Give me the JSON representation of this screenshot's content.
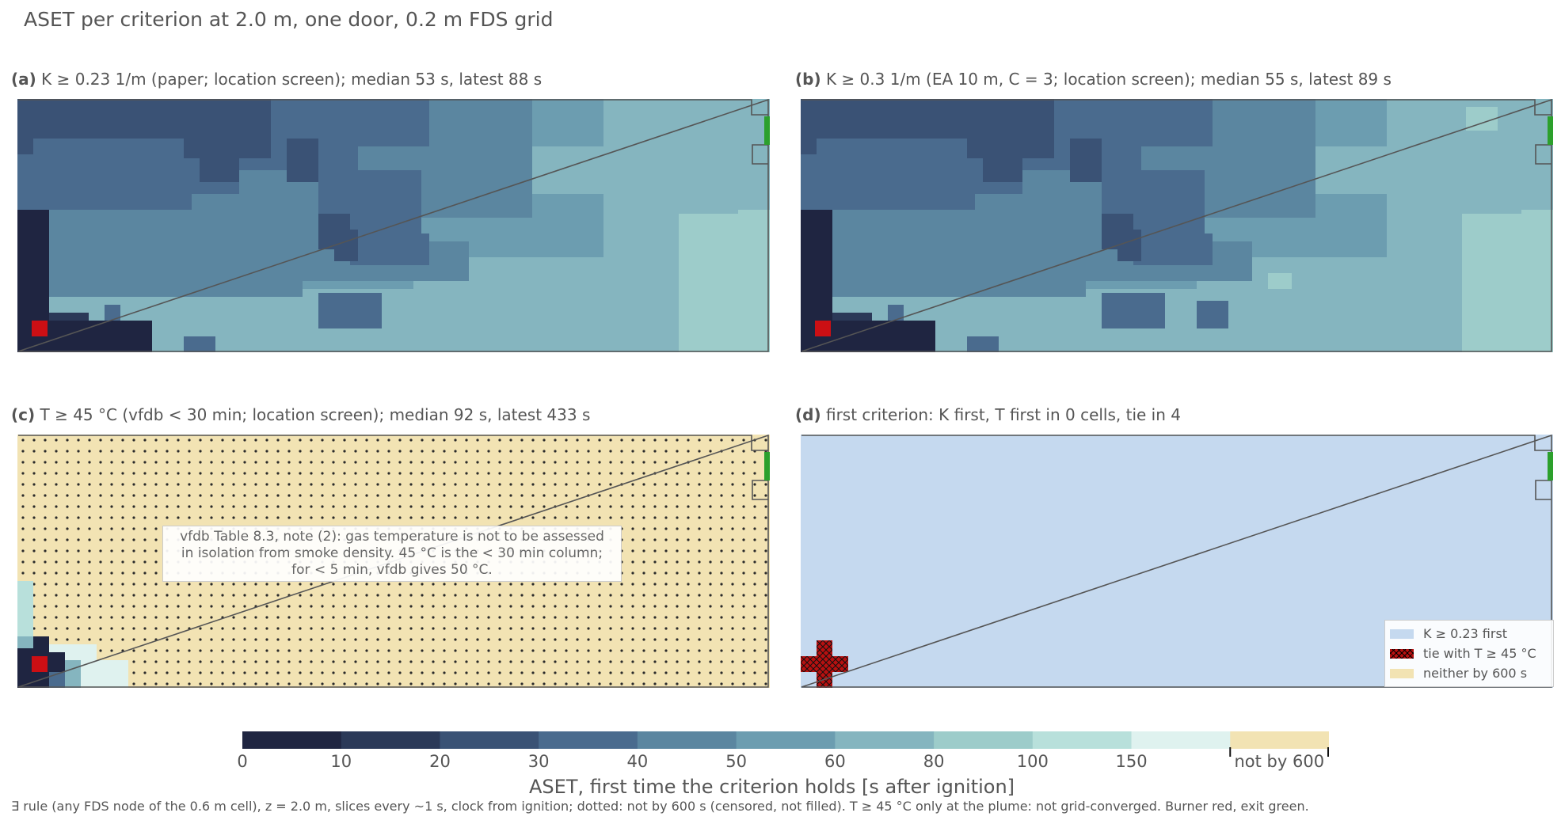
{
  "title": "ASET per criterion at 2.0 m, one door, 0.2 m FDS grid",
  "colors": {
    "bins": [
      "#1f2541",
      "#2b3958",
      "#3a5275",
      "#4a6b8e",
      "#5b86a0",
      "#6c9db0",
      "#85b5bf",
      "#9dccca",
      "#b8e0db",
      "#dff2ef"
    ],
    "not_by_600": "#f2e3b3",
    "burner": "#cc0f14",
    "exit": "#2ca02c",
    "k_first": "#c5d9ef",
    "tie": "#b81010"
  },
  "panels": [
    {
      "tag": "(a)",
      "title": "K ≥ 0.23 1/m (paper; location screen); median 53 s, latest 88 s"
    },
    {
      "tag": "(b)",
      "title": "K ≥ 0.3 1/m (EA 10 m, C = 3; location screen); median 55 s, latest 89 s"
    },
    {
      "tag": "(c)",
      "title": "T ≥ 45 °C (vfdb < 30 min; location screen); median 92 s, latest 433 s"
    },
    {
      "tag": "(d)",
      "title": "first criterion: K first, T first in 0 cells, tie in 4"
    }
  ],
  "annotation_c": {
    "line1": "vfdb Table 8.3, note (2): gas temperature is not to be assessed",
    "line2": "in isolation from smoke density. 45 °C is the < 30 min column;",
    "line3": "for < 5 min, vfdb gives 50 °C."
  },
  "legend_d": [
    {
      "label": "K ≥ 0.23 first"
    },
    {
      "label": "tie with T ≥ 45 °C"
    },
    {
      "label": "neither by 600 s"
    }
  ],
  "colorbar": {
    "ticks": [
      "0",
      "10",
      "20",
      "30",
      "40",
      "50",
      "60",
      "80",
      "100",
      "150",
      "not by 600"
    ],
    "label": "ASET, first time the criterion holds [s after ignition]"
  },
  "footnote": "∃ rule (any FDS node of the 0.6 m cell), z = 2.0 m, slices every ~1 s, clock from ignition; dotted: not by 600 s (censored, not filled). T ≥ 45 °C only at the plume: not grid-converged. Burner red, exit green.",
  "chart_data": [
    {
      "type": "heatmap",
      "panel": "(a)",
      "title": "K ≥ 0.23 1/m (paper; location screen); median 53 s, latest 88 s",
      "grid": {
        "cols": 50,
        "rows": 17
      },
      "summary": {
        "median_s": 53,
        "latest_s": 88
      },
      "value_bins": [
        "0",
        "10",
        "20",
        "30",
        "40",
        "50",
        "60",
        "80",
        "100",
        "150",
        "not by 600"
      ]
    },
    {
      "type": "heatmap",
      "panel": "(b)",
      "title": "K ≥ 0.3 1/m (EA 10 m, C = 3; location screen); median 55 s, latest 89 s",
      "grid": {
        "cols": 50,
        "rows": 17
      },
      "summary": {
        "median_s": 55,
        "latest_s": 89
      }
    },
    {
      "type": "heatmap",
      "panel": "(c)",
      "title": "T ≥ 45 °C (vfdb < 30 min; location screen); median 92 s, latest 433 s",
      "grid": {
        "cols": 50,
        "rows": 17
      },
      "summary": {
        "median_s": 92,
        "latest_s": 433
      },
      "dotted_meaning": "not by 600 s"
    },
    {
      "type": "heatmap",
      "panel": "(d)",
      "title": "first criterion: K first, T first in 0 cells, tie in 4",
      "categories": [
        "K ≥ 0.23 first",
        "tie with T ≥ 45 °C",
        "neither by 600 s"
      ],
      "counts": {
        "T first": 0,
        "tie": 4
      }
    }
  ]
}
